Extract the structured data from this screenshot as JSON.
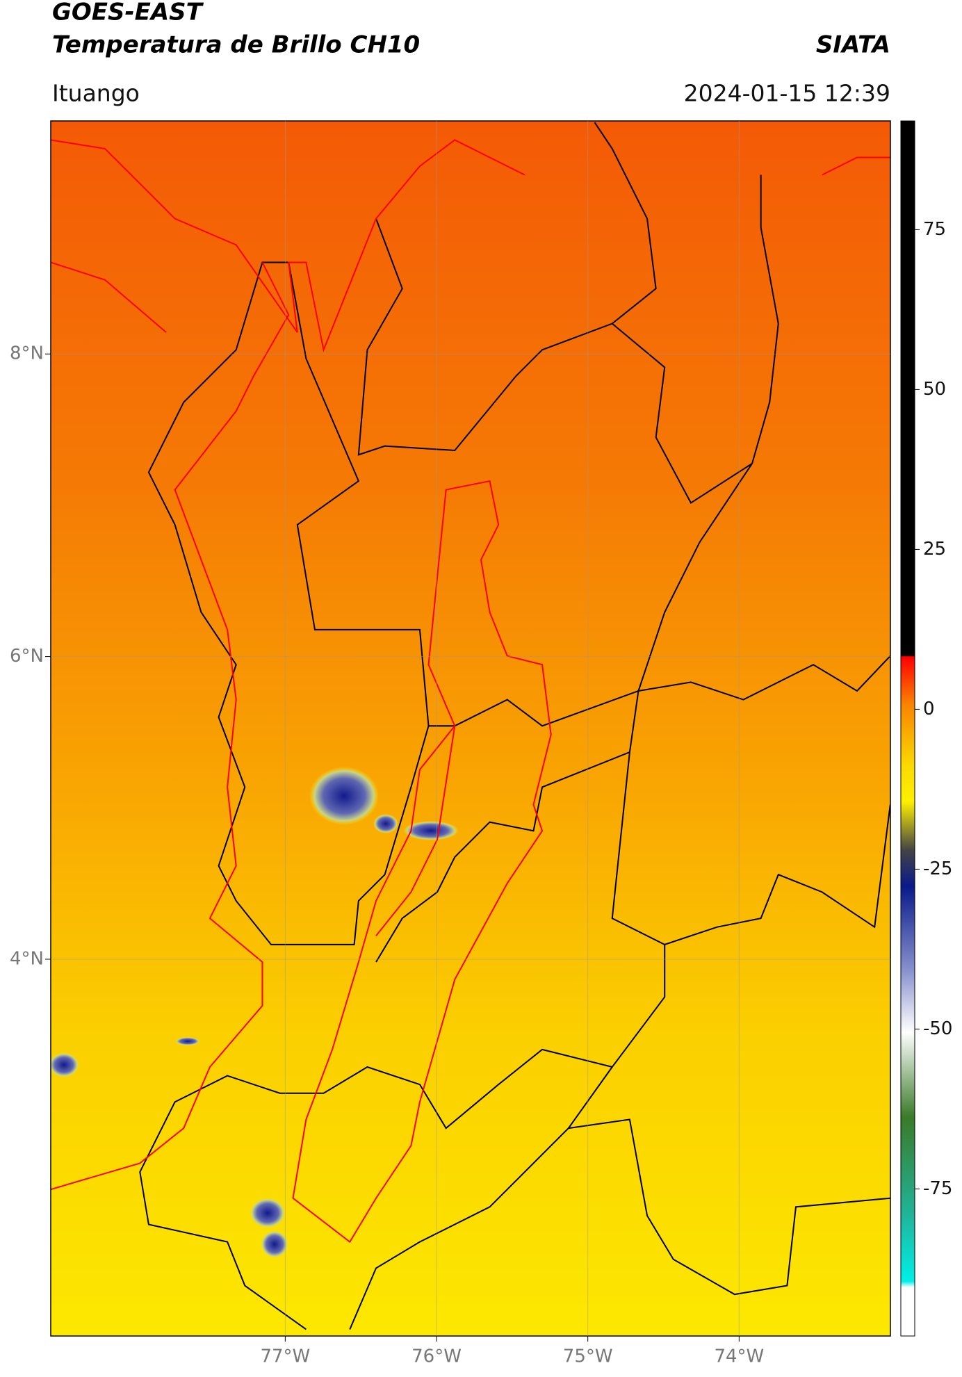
{
  "header": {
    "title": "GOES-EAST",
    "subtitle": "Temperatura de Brillo CH10",
    "source": "SIATA",
    "region": "Ituango",
    "datetime": "2024-01-15 12:39"
  },
  "map": {
    "lonlim": [
      -78.55,
      -73.0
    ],
    "latlim": [
      1.51,
      9.54
    ],
    "lonticks": [
      {
        "value": -77,
        "label": "77°W"
      },
      {
        "value": -76,
        "label": "76°W"
      },
      {
        "value": -75,
        "label": "75°W"
      },
      {
        "value": -74,
        "label": "74°W"
      }
    ],
    "latticks": [
      {
        "value": 8,
        "label": "8°N"
      },
      {
        "value": 6,
        "label": "6°N"
      },
      {
        "value": 4,
        "label": "4°N"
      }
    ],
    "grid": true
  },
  "colorbar": {
    "lim": [
      -98,
      92
    ],
    "ticks": [
      75,
      50,
      25,
      0,
      -25,
      -50,
      -75
    ]
  }
}
